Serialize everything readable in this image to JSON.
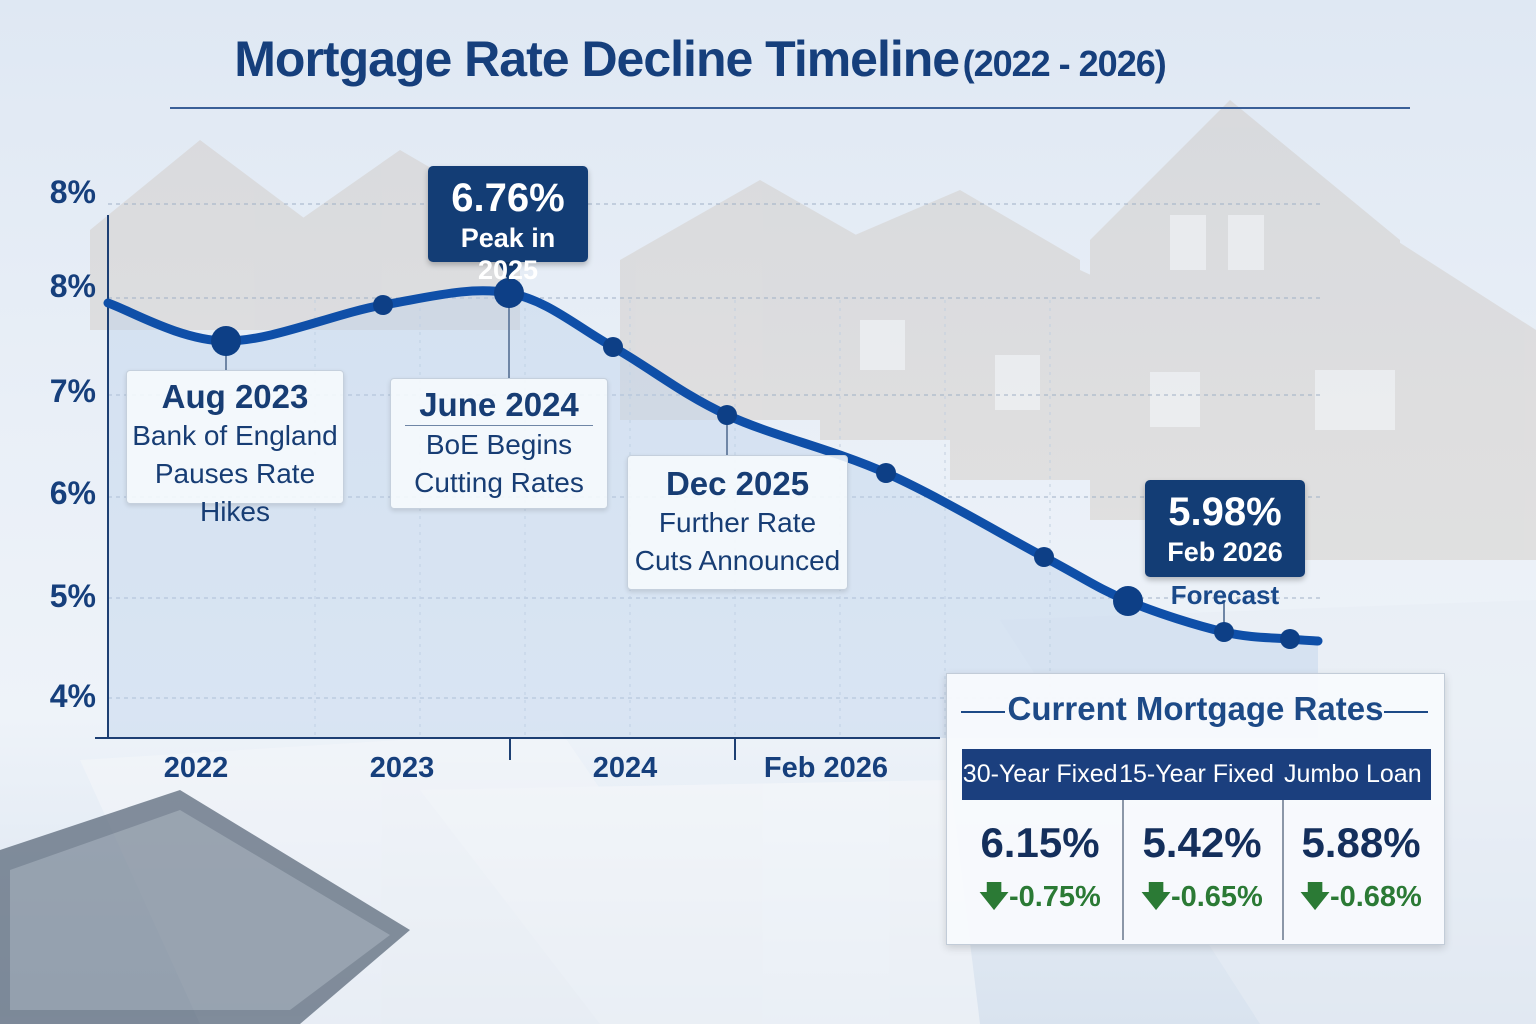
{
  "title": {
    "main": "Mortgage Rate Decline Timeline",
    "range": "(2022 - 2026)"
  },
  "colors": {
    "navy": "#133d75",
    "line": "#0f4fa8",
    "green": "#2b7a35",
    "title": "#163f7c"
  },
  "chart_data": {
    "type": "line",
    "y_tick_labels": [
      "8%",
      "8%",
      "7%",
      "6%",
      "5%",
      "4%"
    ],
    "x_tick_labels": [
      "2022",
      "2023",
      "2024",
      "Feb 2026"
    ],
    "grid": true,
    "series": [
      {
        "values": [
          7.95,
          7.57,
          7.93,
          8.05,
          7.51,
          6.83,
          6.25,
          5.41,
          4.97,
          4.66,
          4.59
        ],
        "highlighted_points": [
          1,
          3,
          8
        ]
      }
    ],
    "annotations": [
      {
        "heading": "Aug 2023",
        "lines": [
          "Bank of England",
          "Pauses Rate Hikes"
        ]
      },
      {
        "heading": "June 2024",
        "lines": [
          "BoE Begins",
          "Cutting Rates"
        ]
      },
      {
        "heading": "Dec 2025",
        "lines": [
          "Further Rate",
          "Cuts Announced"
        ]
      }
    ],
    "callouts": [
      {
        "value": "6.76%",
        "label": "Peak in 2025"
      },
      {
        "value": "5.98%",
        "label": "Feb 2026",
        "note": "Forecast"
      }
    ]
  },
  "panel": {
    "title": "Current Mortgage Rates",
    "columns": [
      {
        "name": "30-Year Fixed",
        "rate": "6.15%",
        "change": "-0.75%",
        "direction": "down"
      },
      {
        "name": "15-Year Fixed",
        "rate": "5.42%",
        "change": "-0.65%",
        "direction": "down"
      },
      {
        "name": "Jumbo Loan",
        "rate": "5.88%",
        "change": "-0.68%",
        "direction": "down"
      }
    ]
  }
}
